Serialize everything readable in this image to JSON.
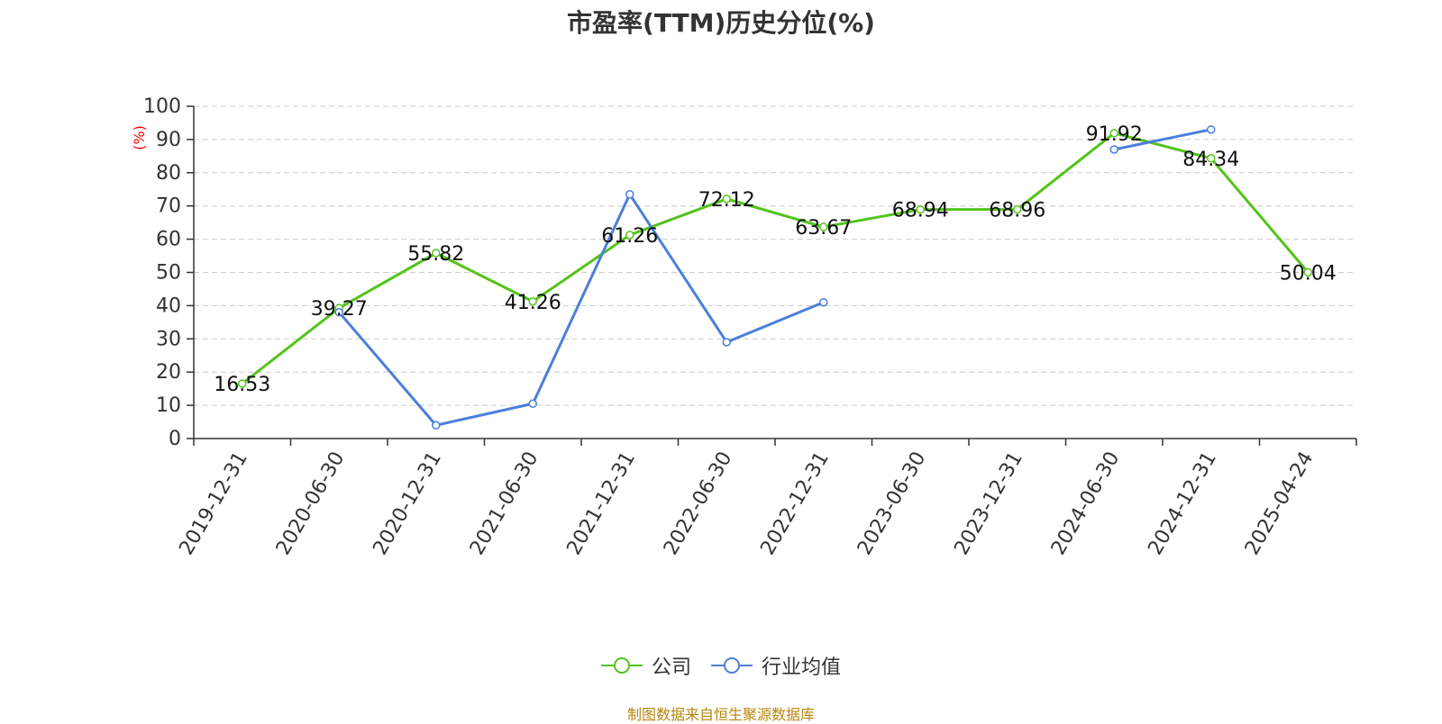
{
  "title": "市盈率(TTM)历史分位(%)",
  "source_note": "制图数据来自恒生聚源数据库",
  "colors": {
    "company": "#52c41a",
    "industry": "#4a7fdc",
    "axis": "#333333",
    "grid": "#cccccc",
    "unit": "#ff0000",
    "source": "#b8860b"
  },
  "chart_data": {
    "type": "line",
    "title": "市盈率(TTM)历史分位(%)",
    "ylabel": "(%)",
    "xlabel": "",
    "ylim": [
      0,
      100
    ],
    "yticks": [
      0,
      10,
      20,
      30,
      40,
      50,
      60,
      70,
      80,
      90,
      100
    ],
    "grid": true,
    "legend_position": "bottom-center",
    "categories": [
      "2019-12-31",
      "2020-06-30",
      "2020-12-31",
      "2021-06-30",
      "2021-12-31",
      "2022-06-30",
      "2022-12-31",
      "2023-06-30",
      "2023-12-31",
      "2024-06-30",
      "2024-12-31",
      "2025-04-24"
    ],
    "series": [
      {
        "name": "公司",
        "color": "#52c41a",
        "show_labels": true,
        "values": [
          16.53,
          39.27,
          55.82,
          41.26,
          61.26,
          72.12,
          63.67,
          68.94,
          68.96,
          91.92,
          84.34,
          50.04
        ]
      },
      {
        "name": "行业均值",
        "color": "#4a7fdc",
        "show_labels": false,
        "values": [
          null,
          38,
          4,
          10.5,
          73.5,
          29,
          41,
          null,
          null,
          87,
          93,
          null
        ]
      }
    ]
  }
}
